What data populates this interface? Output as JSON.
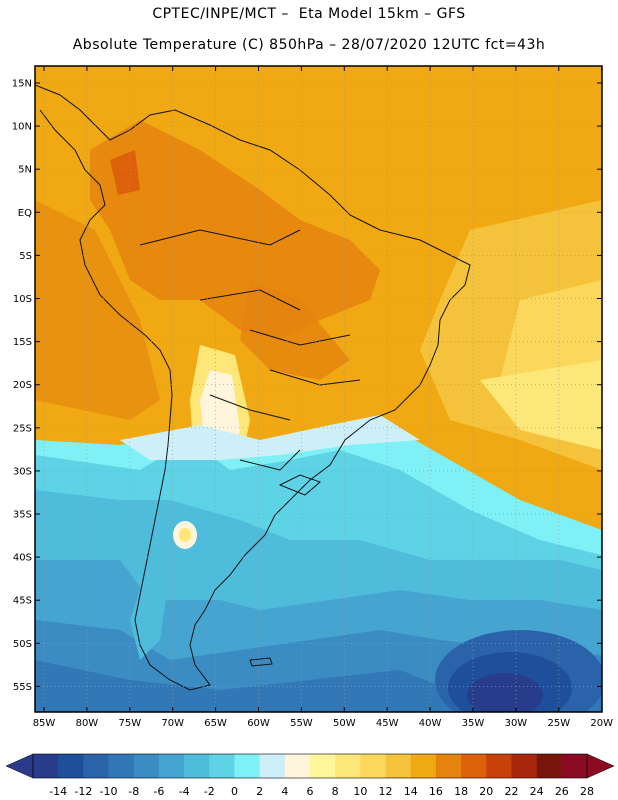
{
  "header": {
    "line1": "CPTEC/INPE/MCT –  Eta Model 15km – GFS",
    "line2": "Absolute Temperature (C) 850hPa – 28/07/2020 12UTC fct=43h"
  },
  "lat_labels": [
    "15N",
    "10N",
    "5N",
    "EQ",
    "5S",
    "10S",
    "15S",
    "20S",
    "25S",
    "30S",
    "35S",
    "40S",
    "45S",
    "50S",
    "55S"
  ],
  "lon_labels": [
    "85W",
    "80W",
    "75W",
    "70W",
    "65W",
    "60W",
    "55W",
    "50W",
    "45W",
    "40W",
    "35W",
    "30W",
    "25W",
    "20W"
  ],
  "colorbar": {
    "ticks": [
      "-14",
      "-12",
      "-10",
      "-8",
      "-6",
      "-4",
      "-2",
      "0",
      "2",
      "4",
      "6",
      "8",
      "10",
      "12",
      "14",
      "16",
      "18",
      "20",
      "22",
      "24",
      "26",
      "28"
    ],
    "colors": [
      "#283c8c",
      "#1f4f9b",
      "#2b63aa",
      "#3277b6",
      "#3a8cc2",
      "#45a4d0",
      "#4fbcdc",
      "#5fd3e6",
      "#7ff0f5",
      "#cdf0f8",
      "#fff5dc",
      "#fff59b",
      "#fde779",
      "#fbd85c",
      "#f5c23b",
      "#f0a813",
      "#e5830f",
      "#dd600a",
      "#c8400a",
      "#a8280d",
      "#78160e",
      "#8b0a24"
    ],
    "low_arrow": "#2c3a8c",
    "high_arrow": "#8b0a24"
  },
  "colors": {
    "frame": "#000000",
    "grid": "#9a9a9a",
    "coast": "#111111"
  }
}
